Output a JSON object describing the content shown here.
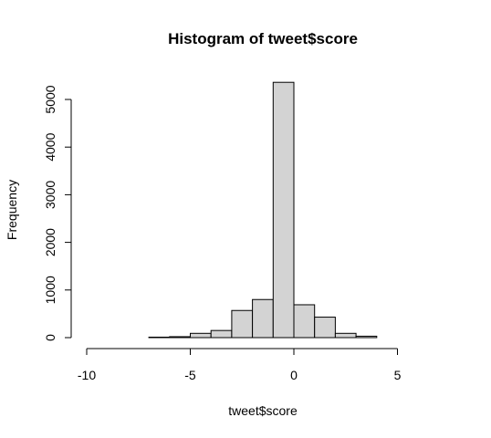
{
  "chart_data": {
    "type": "bar",
    "title": "Histogram of tweet$score",
    "xlabel": "tweet$score",
    "ylabel": "Frequency",
    "xlim": [
      -10,
      7
    ],
    "ylim": [
      0,
      5400
    ],
    "x_ticks": [
      -10,
      -5,
      0,
      5
    ],
    "y_ticks": [
      0,
      1000,
      2000,
      3000,
      4000,
      5000
    ],
    "bins": [
      {
        "start": -10,
        "end": -9,
        "count": 0
      },
      {
        "start": -9,
        "end": -8,
        "count": 0
      },
      {
        "start": -8,
        "end": -7,
        "count": 0
      },
      {
        "start": -7,
        "end": -6,
        "count": 10
      },
      {
        "start": -6,
        "end": -5,
        "count": 20
      },
      {
        "start": -5,
        "end": -4,
        "count": 90
      },
      {
        "start": -4,
        "end": -3,
        "count": 150
      },
      {
        "start": -3,
        "end": -2,
        "count": 570
      },
      {
        "start": -2,
        "end": -1,
        "count": 800
      },
      {
        "start": -1,
        "end": 0,
        "count": 5360
      },
      {
        "start": 0,
        "end": 1,
        "count": 690
      },
      {
        "start": 1,
        "end": 2,
        "count": 430
      },
      {
        "start": 2,
        "end": 3,
        "count": 90
      },
      {
        "start": 3,
        "end": 4,
        "count": 30
      },
      {
        "start": 4,
        "end": 5,
        "count": 0
      },
      {
        "start": 5,
        "end": 6,
        "count": 0
      },
      {
        "start": 6,
        "end": 7,
        "count": 0
      }
    ]
  }
}
